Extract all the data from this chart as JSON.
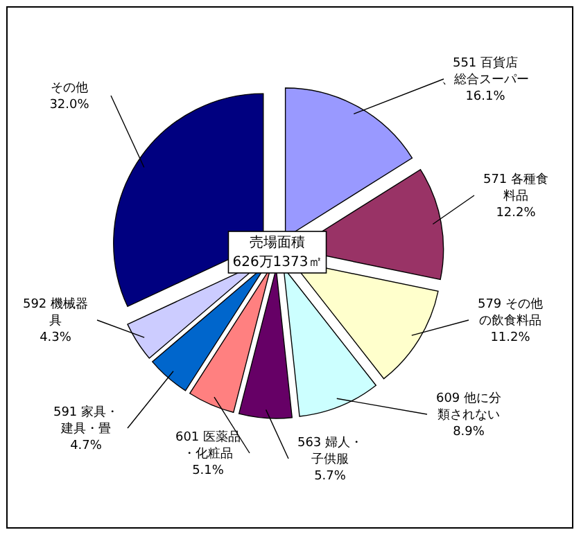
{
  "chart_data": {
    "type": "pie",
    "categories": [
      "551 百貨店、総合スーパー",
      "571 各種食料品",
      "579 その他の飲食料品",
      "609 他に分類されない",
      "563 婦人・子供服",
      "601 医薬品・化粧品",
      "591 家具・建具・畳",
      "592 機械器具",
      "その他"
    ],
    "values": [
      16.1,
      12.2,
      11.2,
      8.9,
      5.7,
      5.1,
      4.7,
      4.3,
      32.0
    ],
    "value_labels": [
      "16.1%",
      "12.2%",
      "11.2%",
      "8.9%",
      "5.7%",
      "5.1%",
      "4.7%",
      "4.3%",
      "32.0%"
    ],
    "colors": [
      "#9999ff",
      "#993366",
      "#ffffcc",
      "#ccffff",
      "#660066",
      "#ff8080",
      "#0066cc",
      "#ccccff",
      "#000080"
    ],
    "annotations": [
      "売場面積",
      "626万1373㎡"
    ]
  }
}
